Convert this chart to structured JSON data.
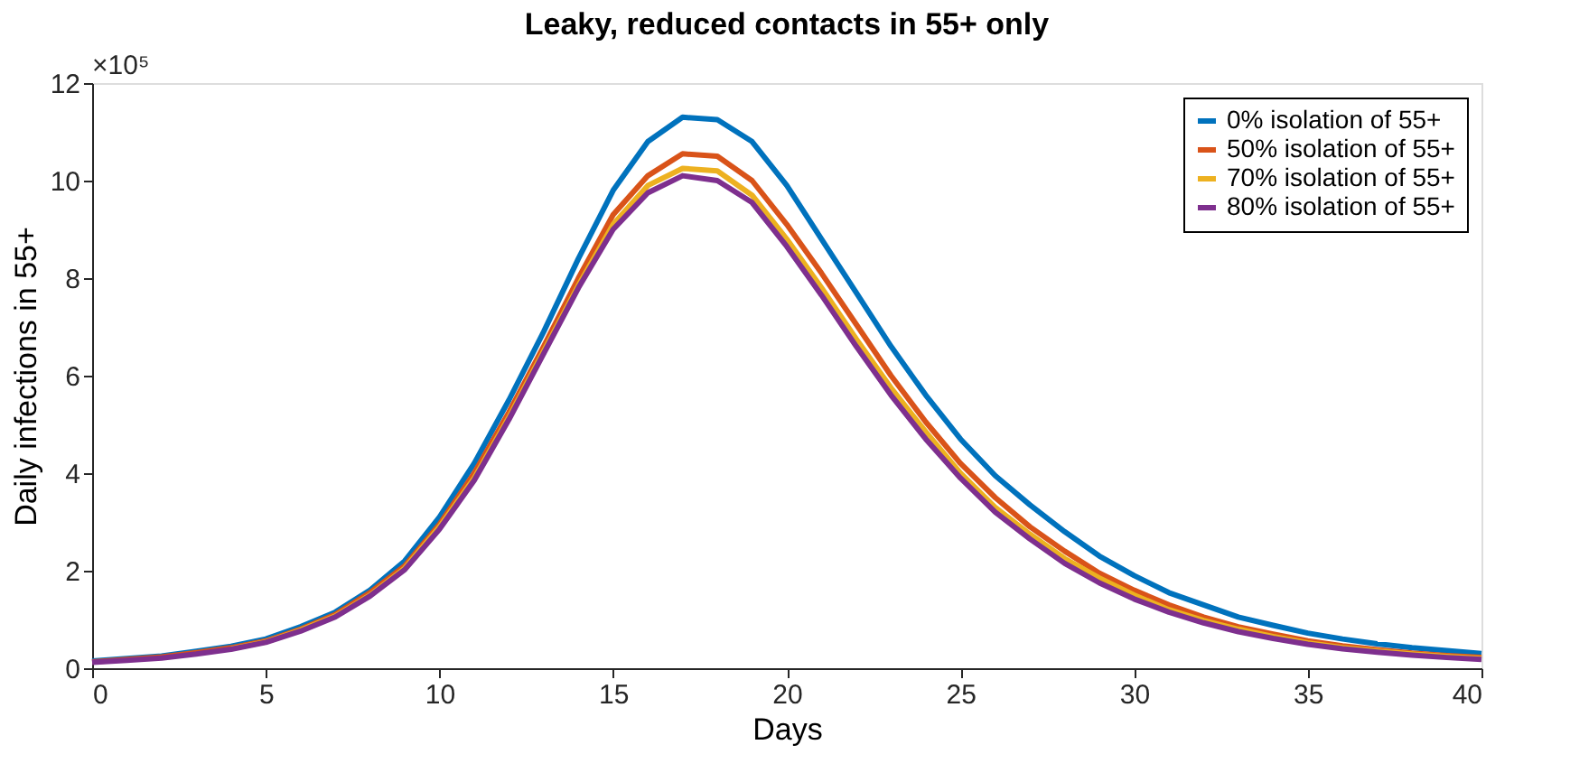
{
  "chart_data": {
    "type": "line",
    "title": "Leaky, reduced contacts in 55+ only",
    "xlabel": "Days",
    "ylabel": "Daily infections in 55+",
    "annotations": [
      "×10⁵"
    ],
    "x": [
      0,
      1,
      2,
      3,
      4,
      5,
      6,
      7,
      8,
      9,
      10,
      11,
      12,
      13,
      14,
      15,
      16,
      17,
      18,
      19,
      20,
      21,
      22,
      23,
      24,
      25,
      26,
      27,
      28,
      29,
      30,
      31,
      32,
      33,
      34,
      35,
      36,
      37,
      38,
      39,
      40
    ],
    "series": [
      {
        "name": "0% isolation of 55+",
        "color": "#0072bd",
        "values": [
          0.15,
          0.2,
          0.25,
          0.35,
          0.45,
          0.6,
          0.85,
          1.15,
          1.6,
          2.2,
          3.1,
          4.2,
          5.5,
          6.9,
          8.4,
          9.8,
          10.8,
          11.3,
          11.25,
          10.8,
          9.9,
          8.8,
          7.7,
          6.6,
          5.6,
          4.7,
          3.95,
          3.35,
          2.8,
          2.3,
          1.9,
          1.55,
          1.3,
          1.05,
          0.88,
          0.72,
          0.6,
          0.5,
          0.42,
          0.36,
          0.3
        ]
      },
      {
        "name": "50% isolation of 55+",
        "color": "#d95319",
        "values": [
          0.13,
          0.18,
          0.23,
          0.32,
          0.42,
          0.56,
          0.8,
          1.1,
          1.55,
          2.1,
          2.95,
          4.0,
          5.25,
          6.6,
          8.0,
          9.3,
          10.1,
          10.55,
          10.5,
          10.0,
          9.1,
          8.1,
          7.05,
          6.0,
          5.05,
          4.2,
          3.5,
          2.9,
          2.4,
          1.95,
          1.6,
          1.3,
          1.05,
          0.85,
          0.7,
          0.56,
          0.46,
          0.38,
          0.31,
          0.26,
          0.22
        ]
      },
      {
        "name": "70% isolation of 55+",
        "color": "#edb120",
        "values": [
          null,
          null,
          null,
          null,
          0.4,
          0.54,
          0.78,
          1.07,
          1.5,
          2.05,
          2.9,
          3.9,
          5.15,
          6.5,
          7.85,
          9.1,
          9.9,
          10.25,
          10.2,
          9.7,
          8.8,
          7.8,
          6.75,
          5.75,
          4.85,
          4.0,
          3.3,
          2.75,
          2.25,
          1.85,
          1.5,
          1.2,
          0.98,
          0.8,
          0.65,
          0.52,
          0.42,
          0.35,
          0.29,
          0.24,
          0.2
        ]
      },
      {
        "name": "80% isolation of 55+",
        "color": "#7e2f8e",
        "values": [
          0.12,
          0.16,
          0.21,
          0.29,
          0.39,
          0.53,
          0.76,
          1.05,
          1.48,
          2.02,
          2.85,
          3.85,
          5.1,
          6.45,
          7.8,
          9.0,
          9.75,
          10.1,
          10.0,
          9.55,
          8.65,
          7.65,
          6.6,
          5.6,
          4.7,
          3.9,
          3.2,
          2.65,
          2.15,
          1.75,
          1.42,
          1.15,
          0.93,
          0.75,
          0.61,
          0.49,
          0.4,
          0.33,
          0.27,
          0.22,
          0.18
        ]
      }
    ],
    "xlim": [
      0,
      40
    ],
    "xticks": [
      0,
      5,
      10,
      15,
      20,
      25,
      30,
      35,
      40
    ],
    "ylim": [
      0,
      12
    ],
    "yticks": [
      0,
      2,
      4,
      6,
      8,
      10,
      12
    ],
    "grid": false,
    "legend": "top right",
    "marker": "none",
    "line_style": "solid"
  }
}
